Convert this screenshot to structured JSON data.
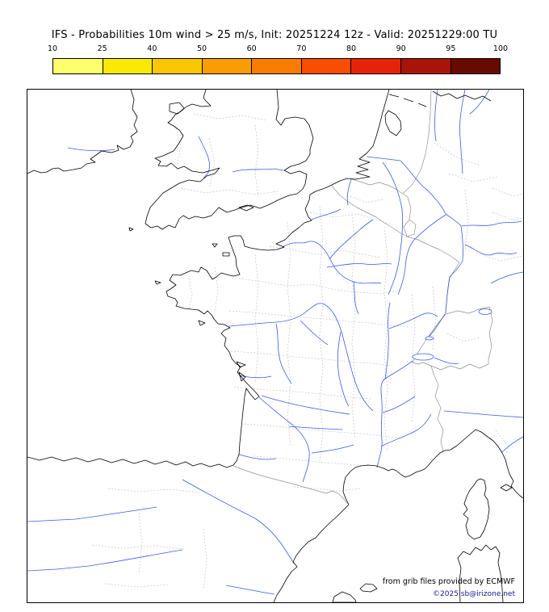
{
  "title": "IFS - Probabilities 10m wind > 25 m/s, Init: 20251224 12z - Valid: 20251229:00 TU",
  "colorbar": {
    "tick_labels": [
      "10",
      "25",
      "40",
      "50",
      "60",
      "70",
      "80",
      "90",
      "95",
      "100"
    ],
    "segment_colors": [
      "#ffff6e",
      "#fce903",
      "#fcc603",
      "#fb9d02",
      "#fa7d01",
      "#f94d01",
      "#e62309",
      "#a81407",
      "#690a02"
    ]
  },
  "map": {
    "colors": {
      "coastline": "#000000",
      "country_border": "#909090",
      "region_border": "#c4c4c4",
      "river": "#3b5de0",
      "frame": "#000000",
      "sea": "#ffffff",
      "land": "#ffffff"
    }
  },
  "attribution": {
    "source_line": "from grib files provided by ECMWF",
    "copyright_line": "©2025 sb@irizone.net",
    "copyright_color": "#17178c"
  }
}
